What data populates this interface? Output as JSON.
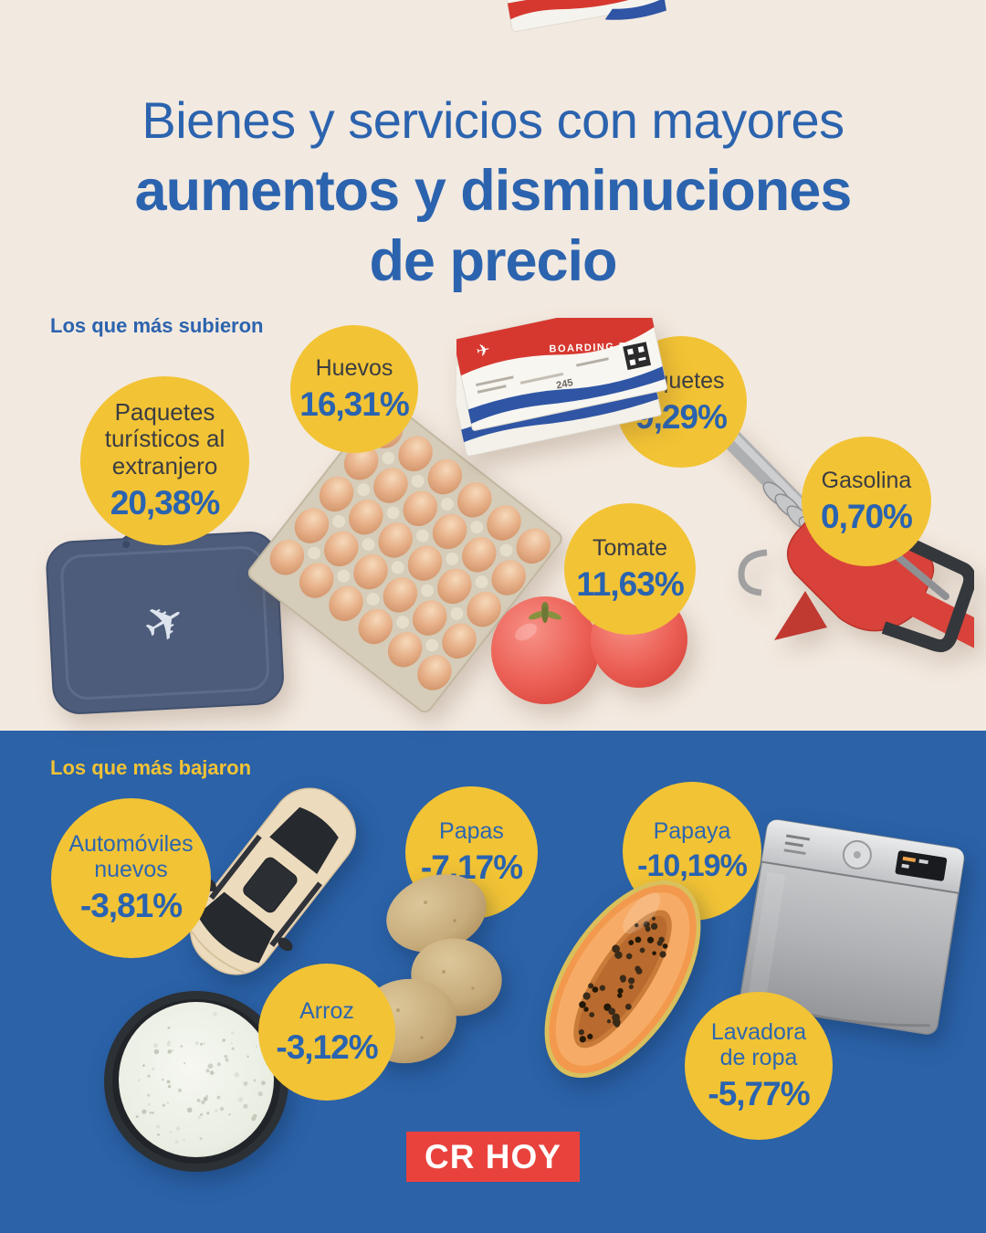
{
  "title": {
    "line1": "Bienes y servicios con mayores",
    "line2": "aumentos y disminuciones",
    "line3": "de precio"
  },
  "sections": {
    "up": {
      "heading": "Los que más subieron",
      "items": [
        {
          "label": "Paquetes turísticos al extranjero",
          "value": "20,38%"
        },
        {
          "label": "Huevos",
          "value": "16,31%"
        },
        {
          "label": "Tiquetes",
          "value": "9,29%"
        },
        {
          "label": "Tomate",
          "value": "11,63%"
        },
        {
          "label": "Gasolina",
          "value": "0,70%"
        }
      ]
    },
    "down": {
      "heading": "Los que más bajaron",
      "items": [
        {
          "label": "Automóviles nuevos",
          "value": "-3,81%"
        },
        {
          "label": "Papas",
          "value": "-7,17%"
        },
        {
          "label": "Papaya",
          "value": "-10,19%"
        },
        {
          "label": "Arroz",
          "value": "-3,12%"
        },
        {
          "label": "Lavadora de ropa",
          "value": "-5,77%"
        }
      ]
    }
  },
  "boarding_pass": {
    "title": "BOARDING PASS",
    "number": "245"
  },
  "footer": {
    "logo_text": "CR HOY"
  },
  "colors": {
    "background_top": "#f2e9e0",
    "background_bottom": "#2b62a8",
    "bubble_yellow": "#f2c335",
    "title_blue": "#2b63ae",
    "value_blue": "#2a63b0",
    "label_dark": "#3a3d42",
    "heading_down_yellow": "#f2c335",
    "logo_red": "#e9423d",
    "logo_text": "#ffffff"
  },
  "chart_data": {
    "type": "bar",
    "title": "Bienes y servicios con mayores aumentos y disminuciones de precio",
    "unit": "%",
    "grid": false,
    "legend_position": "none",
    "series": [
      {
        "name": "Los que más subieron",
        "categories": [
          "Paquetes turísticos al extranjero",
          "Huevos",
          "Tiquetes",
          "Tomate",
          "Gasolina"
        ],
        "values": [
          20.38,
          16.31,
          9.29,
          11.63,
          0.7
        ]
      },
      {
        "name": "Los que más bajaron",
        "categories": [
          "Automóviles nuevos",
          "Papas",
          "Papaya",
          "Arroz",
          "Lavadora de ropa"
        ],
        "values": [
          -3.81,
          -7.17,
          -10.19,
          -3.12,
          -5.77
        ]
      }
    ]
  }
}
